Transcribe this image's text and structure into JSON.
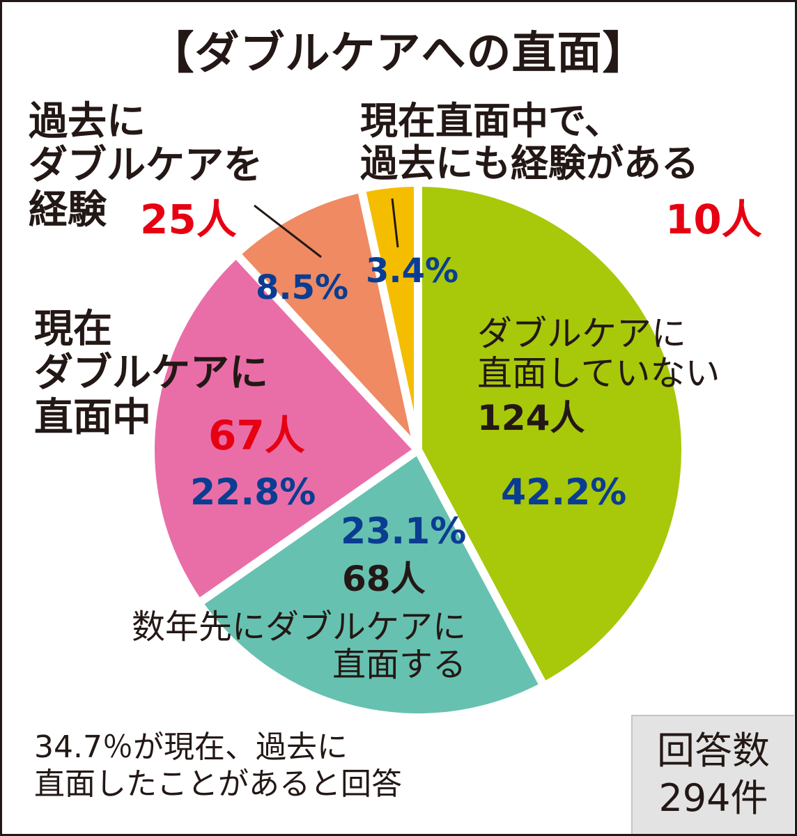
{
  "chart_data": {
    "type": "pie",
    "title": "【ダブルケアへの直面】",
    "slices": [
      {
        "label_lines": [
          "ダブルケアに",
          "直面していない"
        ],
        "count": "124人",
        "percent": "42.2%",
        "value": 42.2,
        "color": "#a8c80a"
      },
      {
        "label_lines": [
          "数年先にダブルケアに",
          "直面する"
        ],
        "count": "68人",
        "percent": "23.1%",
        "value": 23.1,
        "color": "#67c1b0"
      },
      {
        "label_lines": [
          "現在",
          "ダブルケアに",
          "直面中"
        ],
        "count": "67人",
        "percent": "22.8%",
        "value": 22.8,
        "color": "#e96ea8"
      },
      {
        "label_lines": [
          "過去に",
          "ダブルケアを",
          "経験"
        ],
        "count": "25人",
        "percent": "8.5%",
        "value": 8.5,
        "color": "#ef8a62"
      },
      {
        "label_lines": [
          "現在直面中で、",
          "過去にも経験がある"
        ],
        "count": "10人",
        "percent": "3.4%",
        "value": 3.4,
        "color": "#f5bd00"
      }
    ],
    "start_angle_deg": 0,
    "direction": "clockwise"
  },
  "note_lines": [
    "34.7％が現在、過去に",
    "直面したことがあると回答"
  ],
  "respondents": {
    "label": "回答数",
    "value": "294件"
  }
}
